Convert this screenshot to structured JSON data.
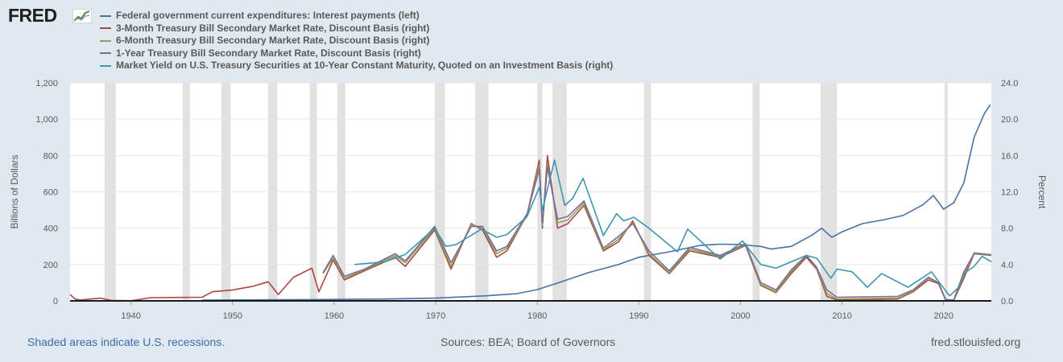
{
  "brand": {
    "logo_text": "FRED"
  },
  "footer": {
    "recession_note": "Shaded areas indicate U.S. recessions.",
    "sources": "Sources: BEA; Board of Governors",
    "site": "fred.stlouisfed.org"
  },
  "colors": {
    "background": "#e1e9f0",
    "plot_background": "#ffffff",
    "recession_shade": "#e1e1e1",
    "gridline": "#e6e6e6",
    "text": "#595959"
  },
  "chart_data": {
    "type": "line",
    "title": "",
    "xlabel": "",
    "ylabel": "Billions of Dollars",
    "ylabel_right": "Percent",
    "xlim": [
      1934,
      2024.7
    ],
    "ylim": [
      0,
      1200
    ],
    "ylim_right": [
      0,
      24
    ],
    "grid": true,
    "legend_position": "top-left",
    "x_ticks": [
      1940,
      1950,
      1960,
      1970,
      1980,
      1990,
      2000,
      2010,
      2020
    ],
    "y_ticks": [
      {
        "value": 0,
        "label": "0"
      },
      {
        "value": 200,
        "label": "200"
      },
      {
        "value": 400,
        "label": "400"
      },
      {
        "value": 600,
        "label": "600"
      },
      {
        "value": 800,
        "label": "800"
      },
      {
        "value": 1000,
        "label": "1,000"
      },
      {
        "value": 1200,
        "label": "1,200"
      }
    ],
    "y_ticks_right": [
      {
        "value": 0,
        "label": "0.0"
      },
      {
        "value": 4,
        "label": "4.0"
      },
      {
        "value": 8,
        "label": "8.0"
      },
      {
        "value": 12,
        "label": "12.0"
      },
      {
        "value": 16,
        "label": "16.0"
      },
      {
        "value": 20,
        "label": "20.0"
      },
      {
        "value": 24,
        "label": "24.0"
      }
    ],
    "recessions": [
      [
        1937.4,
        1938.5
      ],
      [
        1945.1,
        1945.8
      ],
      [
        1948.9,
        1949.8
      ],
      [
        1953.5,
        1954.4
      ],
      [
        1957.6,
        1958.3
      ],
      [
        1960.3,
        1961.1
      ],
      [
        1969.9,
        1970.9
      ],
      [
        1973.9,
        1975.2
      ],
      [
        1980.0,
        1980.5
      ],
      [
        1981.5,
        1982.9
      ],
      [
        1990.5,
        1991.2
      ],
      [
        2001.2,
        2001.9
      ],
      [
        2007.9,
        2009.5
      ],
      [
        2020.1,
        2020.4
      ]
    ],
    "series": [
      {
        "name": "Federal government current expenditures: Interest payments (left)",
        "axis": "left",
        "color": "#4572a7",
        "x": [
          1947,
          1955,
          1960,
          1965,
          1970,
          1975,
          1978,
          1980,
          1982,
          1985,
          1988,
          1990,
          1993,
          1996,
          1998,
          2000,
          2002,
          2003,
          2005,
          2007,
          2008,
          2009,
          2010,
          2012,
          2014,
          2016,
          2018,
          2019,
          2020,
          2021,
          2022,
          2023,
          2024,
          2024.6
        ],
        "y": [
          4,
          6,
          8,
          10,
          15,
          28,
          40,
          62,
          98,
          155,
          200,
          240,
          270,
          305,
          312,
          310,
          300,
          285,
          300,
          360,
          400,
          350,
          380,
          425,
          445,
          470,
          530,
          580,
          505,
          540,
          650,
          900,
          1030,
          1080
        ]
      },
      {
        "name": "3-Month Treasury Bill Secondary Market Rate, Discount Basis (right)",
        "axis": "right",
        "color": "#aa4643",
        "x": [
          1934,
          1934.5,
          1935,
          1937,
          1938,
          1940,
          1942,
          1945,
          1947,
          1948,
          1950,
          1952,
          1953.5,
          1954.5,
          1956,
          1957.8,
          1958.5,
          1959.9,
          1961,
          1963,
          1966,
          1967,
          1969.9,
          1971.5,
          1973.5,
          1974.6,
          1976,
          1977,
          1979,
          1980.2,
          1980.5,
          1981,
          1982,
          1983,
          1984.6,
          1986.5,
          1988,
          1989.4,
          1991,
          1993,
          1995,
          1998,
          2000.5,
          2002,
          2003.5,
          2005,
          2006.5,
          2007.5,
          2008.5,
          2009.5,
          2015.5,
          2017,
          2018.5,
          2019.5,
          2020.2,
          2021,
          2022,
          2023,
          2024.7
        ],
        "y": [
          0.7,
          0.2,
          0.1,
          0.3,
          0.05,
          0.02,
          0.35,
          0.38,
          0.4,
          1.0,
          1.2,
          1.6,
          2.1,
          0.7,
          2.6,
          3.6,
          1.0,
          4.5,
          2.3,
          3.3,
          4.8,
          3.8,
          7.8,
          3.5,
          8.5,
          7.8,
          4.8,
          5.5,
          9.5,
          15.5,
          8.0,
          16.0,
          8.0,
          8.5,
          10.5,
          5.5,
          6.5,
          8.8,
          5.0,
          3.0,
          5.5,
          4.8,
          6.1,
          1.7,
          0.9,
          3.0,
          4.8,
          3.5,
          0.5,
          0.1,
          0.2,
          1.0,
          2.3,
          1.9,
          0.1,
          0.05,
          2.5,
          5.2,
          5.0
        ]
      },
      {
        "name": "6-Month Treasury Bill Secondary Market Rate, Discount Basis (right)",
        "axis": "right",
        "color": "#89a54e",
        "x": [
          1958.9,
          1959.9,
          1961,
          1963,
          1966,
          1967,
          1969.9,
          1971.5,
          1973.5,
          1974.6,
          1976,
          1977,
          1979,
          1980.2,
          1980.5,
          1981,
          1982,
          1983,
          1984.6,
          1986.5,
          1988,
          1989.4,
          1991,
          1993,
          1995,
          1998,
          2000.5,
          2002,
          2003.5,
          2005,
          2006.5,
          2007.5,
          2008.5,
          2009.5,
          2015.5,
          2017,
          2018.5,
          2019.5,
          2020.2,
          2021,
          2022,
          2023,
          2024.7
        ],
        "y": [
          3.0,
          4.7,
          2.5,
          3.4,
          5.0,
          4.2,
          8.0,
          3.8,
          8.4,
          8.0,
          5.2,
          5.8,
          9.4,
          15.0,
          8.3,
          15.0,
          8.6,
          8.9,
          10.8,
          5.6,
          6.8,
          8.6,
          5.2,
          3.1,
          5.7,
          4.9,
          6.2,
          1.8,
          1.0,
          3.2,
          5.0,
          3.6,
          0.8,
          0.2,
          0.3,
          1.1,
          2.5,
          2.0,
          0.15,
          0.05,
          2.9,
          5.3,
          5.1
        ]
      },
      {
        "name": "1-Year Treasury Bill Secondary Market Rate, Discount Basis (right)",
        "axis": "right",
        "color": "#80699b",
        "x": [
          1958.9,
          1959.9,
          1961,
          1963,
          1966,
          1967,
          1969.9,
          1971.5,
          1973.5,
          1974.6,
          1976,
          1977,
          1979,
          1980.2,
          1980.5,
          1981,
          1982,
          1983,
          1984.6,
          1986.5,
          1988,
          1989.4,
          1991,
          1993,
          1995,
          1998,
          2000.5,
          2002,
          2003.5,
          2005,
          2006.5,
          2007.5,
          2008.5,
          2009.5,
          2015.5,
          2017,
          2018.5,
          2019.5,
          2020.2,
          2021,
          2022,
          2023,
          2024.7
        ],
        "y": [
          3.1,
          5.0,
          2.7,
          3.5,
          5.2,
          4.4,
          8.2,
          4.2,
          8.2,
          8.2,
          5.5,
          6.0,
          9.6,
          14.5,
          8.6,
          14.7,
          9.0,
          9.3,
          11.0,
          5.8,
          7.1,
          8.5,
          5.5,
          3.3,
          5.9,
          5.0,
          6.3,
          2.0,
          1.2,
          3.4,
          5.0,
          3.7,
          1.2,
          0.4,
          0.5,
          1.2,
          2.6,
          2.0,
          0.15,
          0.1,
          3.2,
          5.2,
          5.0
        ]
      },
      {
        "name": "Market Yield on U.S. Treasury Securities at 10-Year Constant Maturity, Quoted on an Investment Basis (right)",
        "axis": "right",
        "color": "#3d96ae",
        "x": [
          1962,
          1965,
          1967,
          1969.9,
          1971,
          1972,
          1974.5,
          1976,
          1977,
          1979,
          1980.2,
          1980.5,
          1981.7,
          1982.7,
          1983.5,
          1984.5,
          1986.5,
          1987.8,
          1988.5,
          1989.5,
          1991,
          1993.8,
          1994.8,
          1998,
          1998.8,
          2000.2,
          2002,
          2003.5,
          2005,
          2006.5,
          2007.5,
          2008.9,
          2009.5,
          2011,
          2012.5,
          2013.9,
          2016.5,
          2018.8,
          2019.8,
          2020.6,
          2021.5,
          2022,
          2023,
          2023.8,
          2024.7
        ],
        "y": [
          4.0,
          4.3,
          5.1,
          8.0,
          6.0,
          6.2,
          7.9,
          7.0,
          7.3,
          9.3,
          12.5,
          10.0,
          15.5,
          10.5,
          11.3,
          13.5,
          7.2,
          9.6,
          8.8,
          9.2,
          8.0,
          5.4,
          7.9,
          4.6,
          5.3,
          6.6,
          4.0,
          3.6,
          4.3,
          5.0,
          4.7,
          2.5,
          3.5,
          3.2,
          1.5,
          3.0,
          1.5,
          3.2,
          1.7,
          0.55,
          1.5,
          3.0,
          3.8,
          4.9,
          4.3
        ]
      }
    ]
  }
}
